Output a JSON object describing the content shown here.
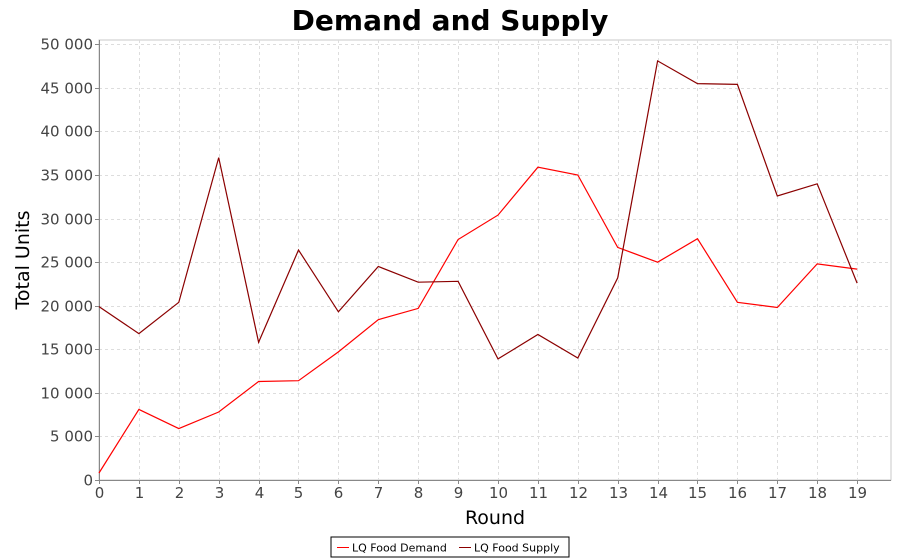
{
  "chart_data": {
    "type": "line",
    "title": "Demand and Supply",
    "xlabel": "Round",
    "ylabel": "Total Units",
    "x": [
      0,
      1,
      2,
      3,
      4,
      5,
      6,
      7,
      8,
      9,
      10,
      11,
      12,
      13,
      14,
      15,
      16,
      17,
      18,
      19
    ],
    "xlim": [
      0,
      19.85
    ],
    "ylim": [
      0,
      50500
    ],
    "x_ticks": [
      "0",
      "1",
      "2",
      "3",
      "4",
      "5",
      "6",
      "7",
      "8",
      "9",
      "10",
      "11",
      "12",
      "13",
      "14",
      "15",
      "16",
      "17",
      "18",
      "19"
    ],
    "y_ticks": [
      0,
      5000,
      10000,
      15000,
      20000,
      25000,
      30000,
      35000,
      40000,
      45000,
      50000
    ],
    "y_tick_labels": [
      "0",
      "5 000",
      "10 000",
      "15 000",
      "20 000",
      "25 000",
      "30 000",
      "35 000",
      "40 000",
      "45 000",
      "50 000"
    ],
    "grid": true,
    "legend_position": "bottom",
    "series": [
      {
        "name": "LQ Food Demand",
        "color": "#ff0000",
        "values": [
          800,
          8100,
          5900,
          7800,
          11300,
          11400,
          14700,
          18400,
          19700,
          27600,
          30400,
          35900,
          35000,
          26700,
          25000,
          27700,
          20400,
          19800,
          24800,
          24200
        ]
      },
      {
        "name": "LQ Food Supply",
        "color": "#8b0000",
        "values": [
          19900,
          16800,
          20400,
          37000,
          15800,
          26400,
          19300,
          24500,
          22700,
          22800,
          13900,
          16700,
          14000,
          23200,
          48100,
          45500,
          45400,
          32600,
          34000,
          22600
        ]
      }
    ]
  }
}
